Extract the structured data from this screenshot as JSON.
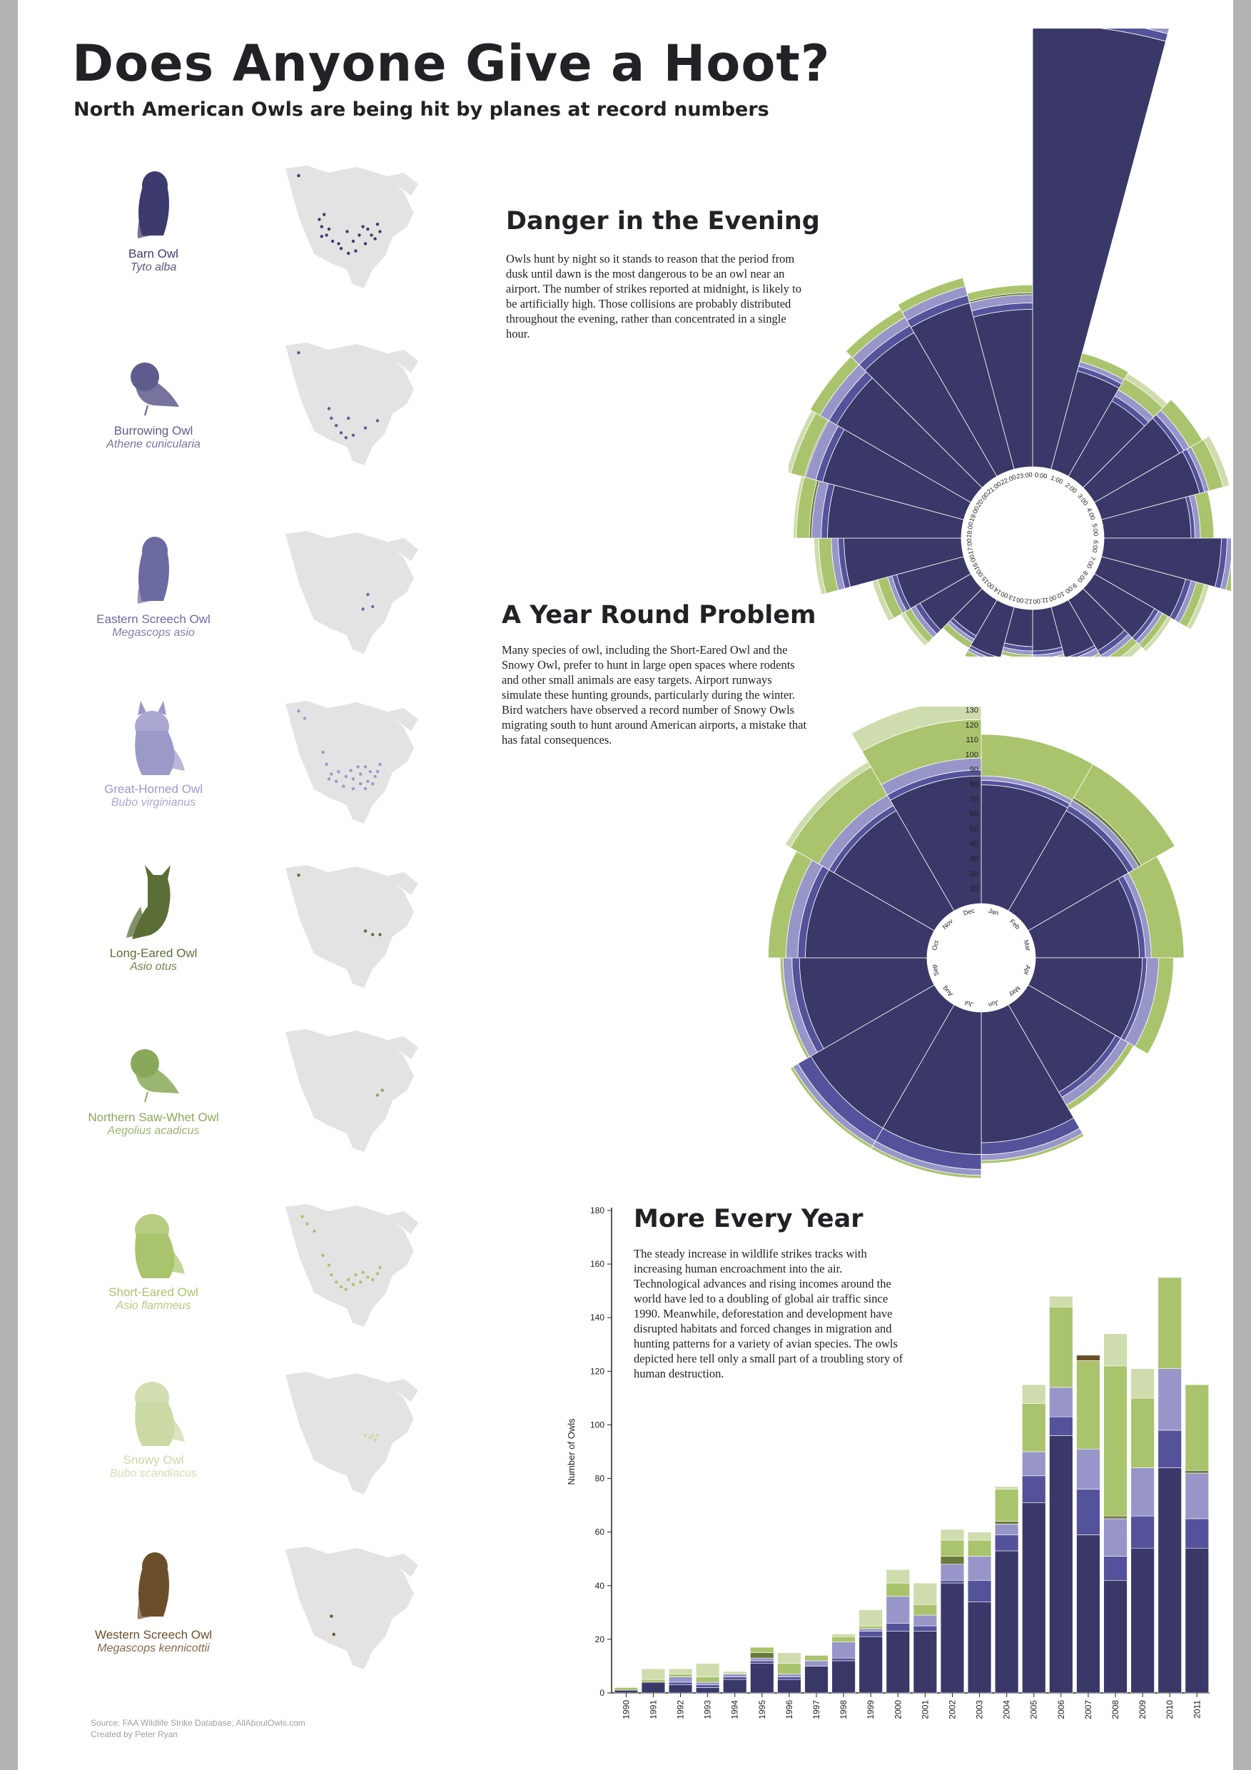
{
  "title": "Does Anyone Give a Hoot?",
  "subtitle": "North American Owls are being hit by planes at record numbers",
  "owls": [
    {
      "name": "Barn Owl",
      "scientific": "Tyto alba",
      "color": "#3d3a6e"
    },
    {
      "name": "Burrowing Owl",
      "scientific": "Athene cunicularia",
      "color": "#5e5c8c"
    },
    {
      "name": "Eastern Screech Owl",
      "scientific": "Megascops asio",
      "color": "#6c6aa3"
    },
    {
      "name": "Great-Horned Owl",
      "scientific": "Bubo virginianus",
      "color": "#9b99c8"
    },
    {
      "name": "Long-Eared Owl",
      "scientific": "Asio otus",
      "color": "#5a6e35"
    },
    {
      "name": "Northern Saw-Whet Owl",
      "scientific": "Aegolius acadicus",
      "color": "#8aa85a"
    },
    {
      "name": "Short-Eared Owl",
      "scientific": "Asio flammeus",
      "color": "#a9c46c"
    },
    {
      "name": "Snowy Owl",
      "scientific": "Bubo scandiacus",
      "color": "#cbd9a4"
    },
    {
      "name": "Western Screech Owl",
      "scientific": "Megascops kennicottii",
      "color": "#6b4f2a"
    }
  ],
  "sections": {
    "evening": {
      "title": "Danger in the Evening",
      "body": "Owls hunt by night so it stands to reason that the period from dusk until dawn is the most dangerous to be an owl near an airport. The number of strikes reported at midnight, is likely to be artificially high. Those collisions are probably distributed throughout the evening, rather than concentrated in a single hour."
    },
    "year": {
      "title": "A Year Round Problem",
      "body": "Many species of owl, including the Short-Eared Owl and the Snowy Owl, prefer to hunt in large open spaces where rodents and other small animals are easy targets. Airport runways simulate these hunting grounds, particularly during the winter. Bird watchers have observed a record number of Snowy Owls migrating south to hunt around American airports, a mistake that has fatal consequences."
    },
    "every_year": {
      "title": "More Every Year",
      "body": "The steady increase in wildlife strikes tracks with increasing human encroachment into the air. Technological advances and rising incomes around the world have led to a doubling of global air traffic since 1990. Meanwhile, deforestation and development have disrupted habitats and forced changes in migration and hunting patterns for a variety of avian species. The owls depicted here tell only a small part of a troubling story of human destruction."
    }
  },
  "source": {
    "line1": "Source: FAA Wildlife Strike Database; AllAboutOwls.com",
    "line2": "Created by Peter Ryan"
  },
  "chart_data": [
    {
      "type": "area",
      "subtype": "polar-stacked",
      "title": "Danger in the Evening",
      "categories": [
        "0:00",
        "1:00",
        "2:00",
        "3:00",
        "4:00",
        "5:00",
        "6:00",
        "7:00",
        "8:00",
        "9:00",
        "10:00",
        "11:00",
        "12:00",
        "13:00",
        "14:00",
        "15:00",
        "16:00",
        "17:00",
        "18:00",
        "19:00",
        "20:00",
        "21:00",
        "22:00",
        "23:00"
      ],
      "series": [
        {
          "color": "#3a3868",
          "values": [
            570,
            30,
            22,
            28,
            30,
            22,
            40,
            22,
            14,
            10,
            8,
            5,
            4,
            8,
            5,
            10,
            14,
            40,
            52,
            62,
            70,
            80,
            86,
            72
          ]
        },
        {
          "color": "#54529a",
          "values": [
            20,
            3,
            3,
            3,
            3,
            2,
            4,
            3,
            2,
            2,
            1,
            1,
            1,
            1,
            1,
            2,
            2,
            4,
            5,
            6,
            8,
            8,
            8,
            6
          ]
        },
        {
          "color": "#9896c8",
          "values": [
            30,
            3,
            4,
            4,
            3,
            3,
            4,
            3,
            2,
            2,
            2,
            1,
            1,
            1,
            1,
            2,
            2,
            5,
            8,
            10,
            10,
            10,
            10,
            8
          ]
        },
        {
          "color": "#6a7a3c",
          "values": [
            0,
            0,
            0,
            0,
            0,
            0,
            0,
            0,
            0,
            0,
            0,
            0,
            0,
            0,
            0,
            0,
            0,
            0,
            2,
            1,
            0,
            0,
            0,
            2
          ]
        },
        {
          "color": "#a9c46c",
          "values": [
            80,
            6,
            8,
            10,
            10,
            8,
            8,
            5,
            3,
            3,
            2,
            1,
            1,
            2,
            2,
            3,
            5,
            10,
            12,
            14,
            12,
            10,
            10,
            8
          ]
        },
        {
          "color": "#cfdcad",
          "values": [
            50,
            0,
            4,
            0,
            5,
            0,
            6,
            3,
            2,
            3,
            2,
            0,
            0,
            0,
            0,
            2,
            3,
            4,
            3,
            5,
            0,
            0,
            0,
            0
          ]
        }
      ],
      "tick_labels": [
        "0:00",
        "1:00",
        "2:00",
        "3:00",
        "4:00",
        "5:00",
        "6:00",
        "7:00",
        "8:00",
        "9:00",
        "10:00",
        "11:00",
        "12:00",
        "13:00",
        "14:00",
        "15:00",
        "16:00",
        "17:00",
        "18:00",
        "19:00",
        "20:00",
        "21:00",
        "22:00",
        "23:00"
      ]
    },
    {
      "type": "area",
      "subtype": "polar-stacked",
      "title": "A Year Round Problem",
      "categories": [
        "Jan",
        "Feb",
        "Mar",
        "Apr",
        "May",
        "Jun",
        "Jul",
        "Aug",
        "Sep",
        "Oct",
        "Nov",
        "Dec"
      ],
      "series": [
        {
          "color": "#3a3868",
          "values": [
            80,
            78,
            70,
            72,
            68,
            88,
            96,
            96,
            86,
            82,
            78,
            86
          ]
        },
        {
          "color": "#54529a",
          "values": [
            3,
            4,
            4,
            3,
            4,
            8,
            10,
            10,
            5,
            5,
            4,
            4
          ]
        },
        {
          "color": "#9896c8",
          "values": [
            3,
            4,
            4,
            8,
            6,
            4,
            4,
            4,
            6,
            8,
            8,
            8
          ]
        },
        {
          "color": "#6a7a3c",
          "values": [
            0,
            2,
            0,
            0,
            0,
            0,
            0,
            0,
            0,
            0,
            0,
            0
          ]
        },
        {
          "color": "#a9c46c",
          "values": [
            28,
            26,
            22,
            10,
            4,
            2,
            2,
            2,
            2,
            12,
            22,
            26
          ]
        },
        {
          "color": "#cfdcad",
          "values": [
            0,
            0,
            0,
            0,
            0,
            0,
            0,
            0,
            0,
            0,
            4,
            14
          ]
        }
      ],
      "radial_ticks": [
        10,
        20,
        30,
        40,
        50,
        60,
        70,
        80,
        90,
        100,
        110,
        120,
        130
      ]
    },
    {
      "type": "bar",
      "subtype": "stacked",
      "title": "More Every Year",
      "categories": [
        "1990",
        "1991",
        "1992",
        "1993",
        "1994",
        "1995",
        "1996",
        "1997",
        "1998",
        "1999",
        "2000",
        "2001",
        "2002",
        "2003",
        "2004",
        "2005",
        "2006",
        "2007",
        "2008",
        "2009",
        "2010",
        "2011"
      ],
      "series": [
        {
          "color": "#3a3868",
          "values": [
            1,
            4,
            3,
            2,
            5,
            11,
            5,
            10,
            12,
            21,
            23,
            23,
            41,
            34,
            53,
            71,
            96,
            59,
            42,
            54,
            84,
            54
          ]
        },
        {
          "color": "#54529a",
          "values": [
            0,
            0,
            1,
            1,
            1,
            1,
            1,
            0,
            1,
            2,
            3,
            2,
            1,
            8,
            6,
            10,
            7,
            17,
            9,
            12,
            14,
            11
          ]
        },
        {
          "color": "#9896c8",
          "values": [
            0,
            0,
            2,
            1,
            1,
            1,
            1,
            2,
            6,
            1,
            10,
            4,
            6,
            9,
            4,
            9,
            11,
            15,
            14,
            18,
            23,
            17
          ]
        },
        {
          "color": "#6a7a3c",
          "values": [
            0,
            0,
            0,
            0,
            0,
            2,
            0,
            0,
            0,
            0,
            0,
            0,
            3,
            0,
            1,
            0,
            0,
            0,
            1,
            0,
            0,
            1
          ]
        },
        {
          "color": "#a9c46c",
          "values": [
            1,
            1,
            1,
            2,
            0,
            2,
            4,
            2,
            2,
            1,
            5,
            4,
            6,
            6,
            12,
            18,
            30,
            33,
            56,
            26,
            34,
            32
          ]
        },
        {
          "color": "#cfdcad",
          "values": [
            0,
            4,
            2,
            5,
            1,
            0,
            4,
            0,
            1,
            6,
            5,
            8,
            4,
            3,
            1,
            7,
            4,
            0,
            12,
            11,
            0,
            0
          ]
        },
        {
          "color": "#6b4f2a",
          "values": [
            0,
            0,
            0,
            0,
            0,
            0,
            0,
            0,
            0,
            0,
            0,
            0,
            0,
            0,
            0,
            0,
            0,
            2,
            0,
            0,
            0,
            0
          ]
        }
      ],
      "ylabel": "Number of Owls",
      "xlabel": "",
      "ylim": [
        0,
        180
      ],
      "yticks": [
        0,
        20,
        40,
        60,
        80,
        100,
        120,
        140,
        160,
        180
      ]
    }
  ]
}
